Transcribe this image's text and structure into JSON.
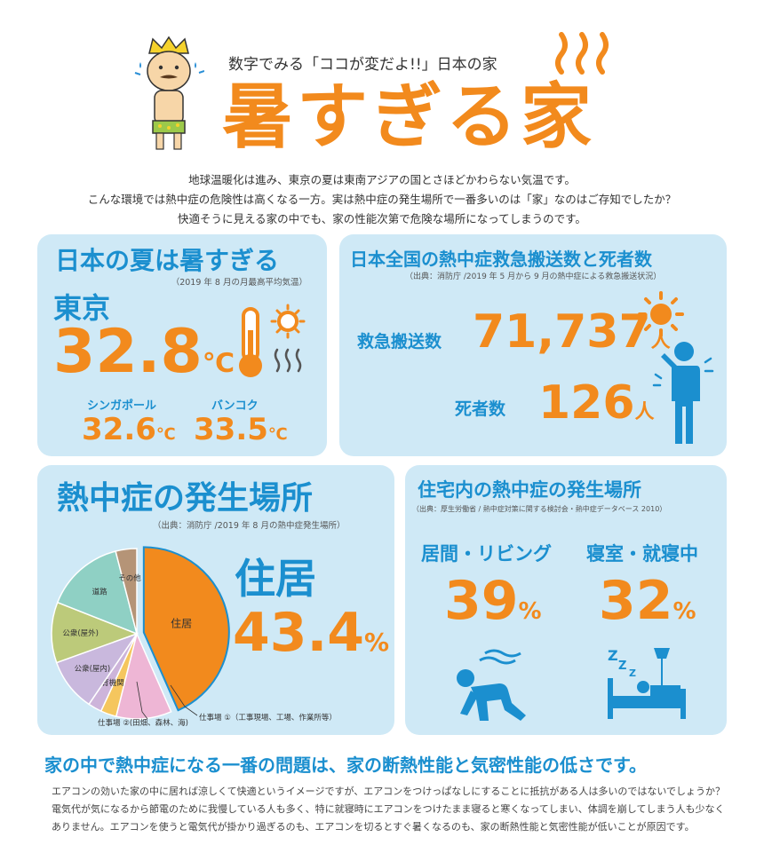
{
  "header": {
    "subtitle": "数字でみる「ココが変だよ!!」日本の家",
    "title": "暑すぎる家",
    "intro": [
      "地球温暖化は進み、東京の夏は東南アジアの国とさほどかわらない気温です。",
      "こんな環境では熱中症の危険性は高くなる一方。実は熱中症の発生場所で一番多いのは「家」なのはご存知でしたか？",
      "快適そうに見える家の中でも、家の性能次第で危険な場所になってしまうのです。"
    ]
  },
  "summer": {
    "title": "日本の夏は暑すぎる",
    "source": "（2019 年 8 月の月最高平均気温）",
    "city": "東京",
    "temp": "32.8",
    "unit": "℃",
    "sub": [
      {
        "city": "シンガポール",
        "temp": "32.6",
        "unit": "℃"
      },
      {
        "city": "バンコク",
        "temp": "33.5",
        "unit": "℃"
      }
    ]
  },
  "transport": {
    "title": "日本全国の熱中症救急搬送数と死者数",
    "source": "（出典：消防庁 /2019 年 5 月から 9 月の熱中症による救急搬送状況）",
    "rows": [
      {
        "label": "救急搬送数",
        "value": "71,737",
        "unit": "人"
      },
      {
        "label": "死者数",
        "value": "126",
        "unit": "人"
      }
    ]
  },
  "places": {
    "title": "熱中症の発生場所",
    "source": "（出典：消防庁 /2019 年 8 月の熱中症発生場所）",
    "highlight_label": "住居",
    "highlight_value": "43.4",
    "highlight_unit": "%",
    "callouts": [
      "仕事場 ①（工事現場、工場、作業所等）",
      "仕事場 ②(田畑、森林、海)"
    ]
  },
  "home": {
    "title": "住宅内の熱中症の発生場所",
    "source": "（出典：厚生労働省 / 熱中症対策に関する検討会・熱中症データベース 2010）",
    "items": [
      {
        "label": "居間・リビング",
        "value": "39",
        "unit": "%"
      },
      {
        "label": "寝室・就寝中",
        "value": "32",
        "unit": "%"
      }
    ]
  },
  "footer": {
    "headline": "家の中で熱中症になる一番の問題は、家の断熱性能と気密性能の低さです。",
    "lines": [
      "エアコンの効いた家の中に居れば涼しくて快適というイメージですが、エアコンをつけっぱなしにすることに抵抗がある人は多いのではないでしょうか？",
      "電気代が気になるから節電のために我慢している人も多く、特に就寝時にエアコンをつけたまま寝ると寒くなってしまい、体調を崩してしまう人も少なく",
      "ありません。エアコンを使うと電気代が掛かり過ぎるのも、エアコンを切るとすぐ暑くなるのも、家の断熱性能と気密性能が低いことが原因です。"
    ]
  },
  "colors": {
    "orange": "#f28a1d",
    "blue": "#1b8fcf",
    "panel": "#cfe9f6"
  },
  "chart_data": {
    "type": "pie",
    "title": "熱中症の発生場所",
    "categories": [
      "住居",
      "仕事場 ①",
      "仕事場 ②",
      "教育機関",
      "公衆(屋内)",
      "公衆(屋外)",
      "道路",
      "その他"
    ],
    "labels": [
      "住居",
      "",
      "",
      "教育機関",
      "公衆(屋内)",
      "公衆(屋外)",
      "道路",
      "その他"
    ],
    "values": [
      43.4,
      10.5,
      3.0,
      2.6,
      10.0,
      11.5,
      15.0,
      4.0
    ],
    "colors": [
      "#f28a1d",
      "#eeb6d5",
      "#f5c65e",
      "#cdb4da",
      "#c9b8dd",
      "#bcca7a",
      "#8fd0c4",
      "#b59477"
    ]
  }
}
